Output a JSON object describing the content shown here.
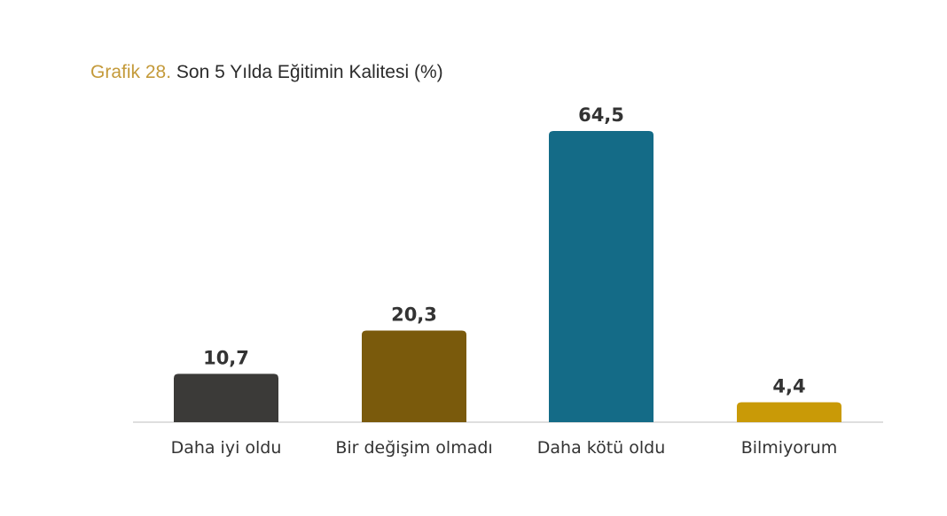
{
  "title": {
    "prefix": "Grafik 28.",
    "text": "Son 5 Yılda Eğitimin Kalitesi (%)"
  },
  "chart_data": {
    "type": "bar",
    "title": "Grafik 28. Son 5 Yılda Eğitimin Kalitesi (%)",
    "categories": [
      "Daha iyi oldu",
      "Bir değişim olmadı",
      "Daha kötü oldu",
      "Bilmiyorum"
    ],
    "values": [
      10.7,
      20.3,
      64.5,
      4.4
    ],
    "value_labels": [
      "10,7",
      "20,3",
      "64,5",
      "4,4"
    ],
    "colors": [
      "#3b3a38",
      "#7a5a0c",
      "#146b87",
      "#c99a07"
    ],
    "ylim": [
      0,
      64.5
    ],
    "grid": false,
    "legend": "none",
    "xlabel": "",
    "ylabel": ""
  }
}
